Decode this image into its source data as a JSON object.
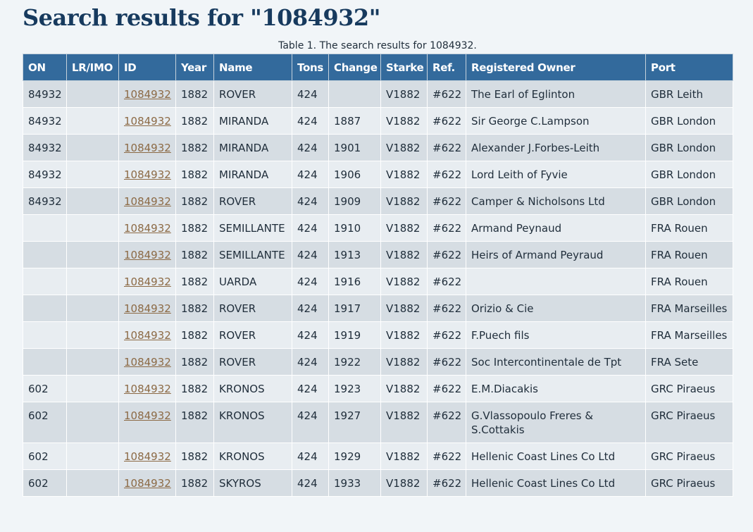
{
  "page": {
    "title": "Search results for \"1084932\"",
    "caption": "Table 1. The search results for 1084932."
  },
  "table": {
    "headers": [
      "ON",
      "LR/IMO",
      "ID",
      "Year",
      "Name",
      "Tons",
      "Change",
      "Starke",
      "Ref.",
      "Registered Owner",
      "Port"
    ],
    "rows": [
      [
        "84932",
        "",
        "1084932",
        "1882",
        "ROVER",
        "424",
        "",
        "V1882",
        "#622",
        "The Earl of Eglinton",
        "GBR Leith"
      ],
      [
        "84932",
        "",
        "1084932",
        "1882",
        "MIRANDA",
        "424",
        "1887",
        "V1882",
        "#622",
        "Sir George C.Lampson",
        "GBR London"
      ],
      [
        "84932",
        "",
        "1084932",
        "1882",
        "MIRANDA",
        "424",
        "1901",
        "V1882",
        "#622",
        "Alexander J.Forbes-Leith",
        "GBR London"
      ],
      [
        "84932",
        "",
        "1084932",
        "1882",
        "MIRANDA",
        "424",
        "1906",
        "V1882",
        "#622",
        "Lord Leith of Fyvie",
        "GBR London"
      ],
      [
        "84932",
        "",
        "1084932",
        "1882",
        "ROVER",
        "424",
        "1909",
        "V1882",
        "#622",
        "Camper & Nicholsons Ltd",
        "GBR London"
      ],
      [
        "",
        "",
        "1084932",
        "1882",
        "SEMILLANTE",
        "424",
        "1910",
        "V1882",
        "#622",
        "Armand Peynaud",
        "FRA Rouen"
      ],
      [
        "",
        "",
        "1084932",
        "1882",
        "SEMILLANTE",
        "424",
        "1913",
        "V1882",
        "#622",
        "Heirs of Armand Peyraud",
        "FRA Rouen"
      ],
      [
        "",
        "",
        "1084932",
        "1882",
        "UARDA",
        "424",
        "1916",
        "V1882",
        "#622",
        "",
        "FRA Rouen"
      ],
      [
        "",
        "",
        "1084932",
        "1882",
        "ROVER",
        "424",
        "1917",
        "V1882",
        "#622",
        "Orizio & Cie",
        "FRA Marseilles"
      ],
      [
        "",
        "",
        "1084932",
        "1882",
        "ROVER",
        "424",
        "1919",
        "V1882",
        "#622",
        "F.Puech fils",
        "FRA Marseilles"
      ],
      [
        "",
        "",
        "1084932",
        "1882",
        "ROVER",
        "424",
        "1922",
        "V1882",
        "#622",
        "Soc Intercontinentale de Tpt",
        "FRA Sete"
      ],
      [
        "602",
        "",
        "1084932",
        "1882",
        "KRONOS",
        "424",
        "1923",
        "V1882",
        "#622",
        "E.M.Diacakis",
        "GRC Piraeus"
      ],
      [
        "602",
        "",
        "1084932",
        "1882",
        "KRONOS",
        "424",
        "1927",
        "V1882",
        "#622",
        "G.Vlassopoulo Freres & S.Cottakis",
        "GRC Piraeus"
      ],
      [
        "602",
        "",
        "1084932",
        "1882",
        "KRONOS",
        "424",
        "1929",
        "V1882",
        "#622",
        "Hellenic Coast Lines Co Ltd",
        "GRC Piraeus"
      ],
      [
        "602",
        "",
        "1084932",
        "1882",
        "SKYROS",
        "424",
        "1933",
        "V1882",
        "#622",
        "Hellenic Coast Lines Co Ltd",
        "GRC Piraeus"
      ]
    ]
  },
  "colors": {
    "header_bg": "#336a9c",
    "title": "#173a5e",
    "link": "#8c6a45",
    "row_odd": "#d6dde3",
    "row_even": "#e8edf1",
    "page_bg": "#f1f5f8"
  }
}
